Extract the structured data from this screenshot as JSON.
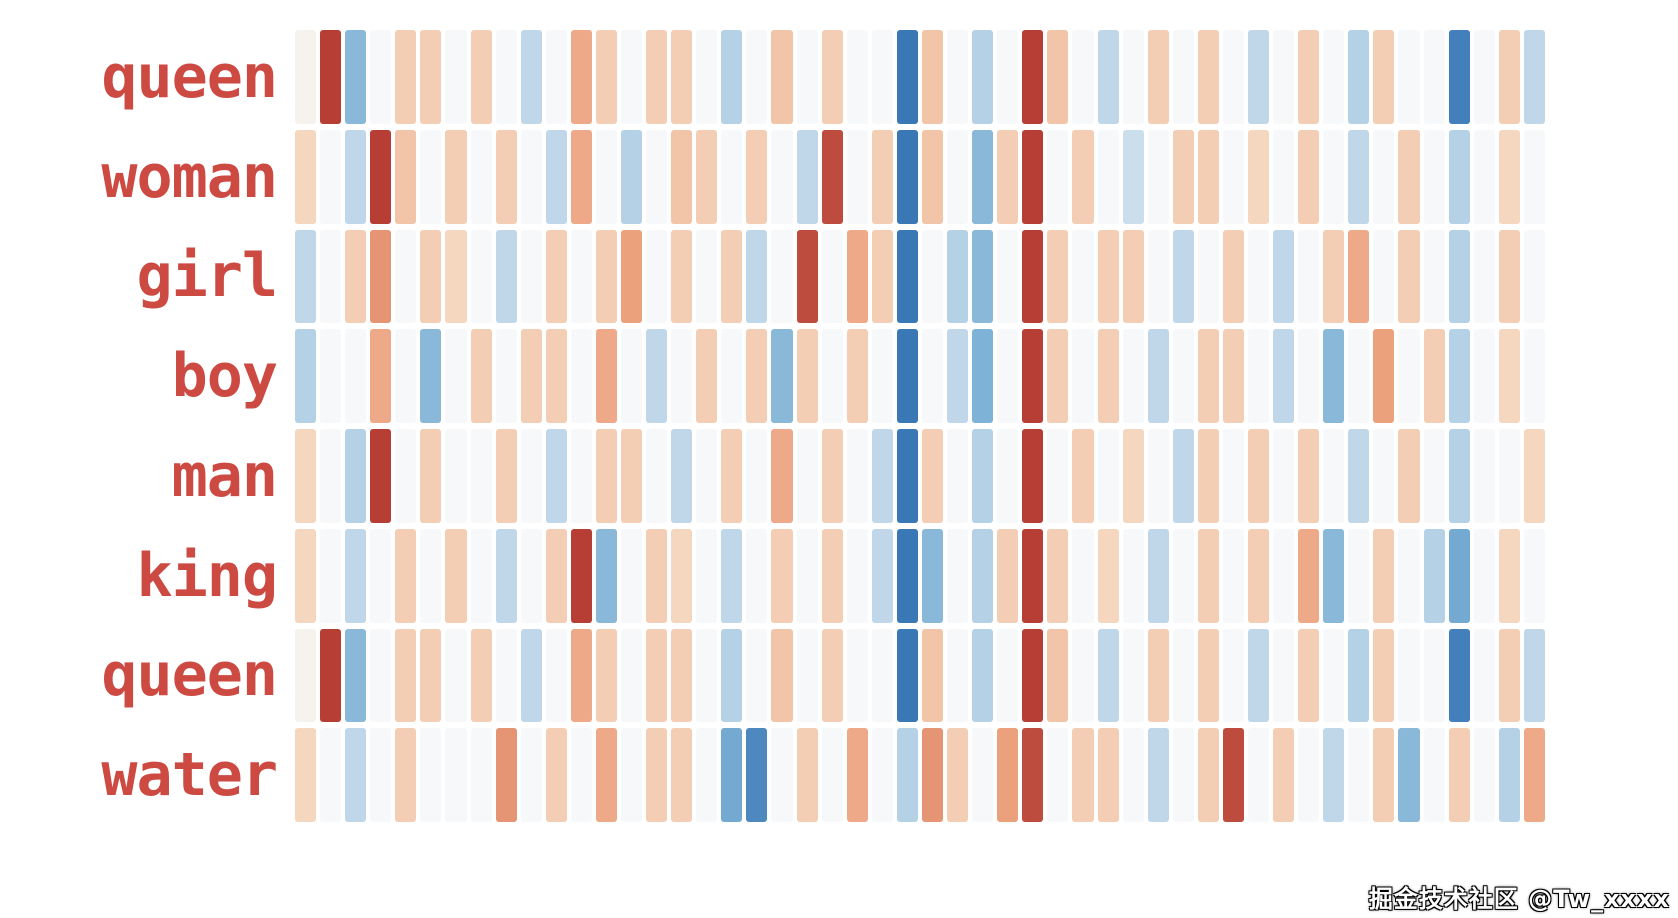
{
  "figure": {
    "description": "Word embedding heatmap: each row is a word, each colored strip is one embedding dimension on a blue-white-red diverging scale"
  },
  "watermark": {
    "text": "掘金技术社区 @Tw_xxxx"
  },
  "colors": {
    "label": "#cd4a43",
    "background": "#ffffff",
    "negative_max": "#2666ac",
    "negative_mid": "#7eb2d6",
    "negative_low": "#c7dbeb",
    "zero": "#f6f8f9",
    "positive_low": "#f6dcc6",
    "positive_mid": "#eca17d",
    "positive_max": "#b0322c"
  },
  "chart_data": {
    "type": "heatmap",
    "title": "",
    "xlabel": "",
    "ylabel": "",
    "legend": "none",
    "grid": false,
    "rows": [
      "queen",
      "woman",
      "girl",
      "boy",
      "man",
      "king",
      "queen",
      "water"
    ],
    "columns": 50,
    "value_range": [
      -1,
      1
    ],
    "colormap": "diverging RdBu reversed (dark blue = -1, white = 0, dark red = +1)",
    "values": [
      [
        0.05,
        0.95,
        -0.5,
        0,
        0.3,
        0.3,
        0,
        0.3,
        0,
        -0.25,
        0,
        0.5,
        0.3,
        0,
        0.3,
        0.3,
        0,
        -0.3,
        0,
        0.35,
        0,
        0.3,
        0,
        0,
        -0.9,
        0.35,
        0,
        -0.3,
        0,
        0.95,
        0.35,
        0,
        -0.25,
        0,
        0.3,
        0,
        0.3,
        0,
        -0.25,
        0,
        0.3,
        0,
        -0.3,
        0.3,
        0,
        0,
        -0.85,
        0,
        0.3,
        -0.25
      ],
      [
        0.25,
        0,
        -0.25,
        0.95,
        0.35,
        0,
        0.3,
        0,
        0.3,
        0,
        -0.25,
        0.5,
        0,
        -0.3,
        0,
        0.35,
        0.3,
        0,
        0.3,
        0,
        -0.25,
        0.9,
        0,
        0.3,
        -0.9,
        0.35,
        0,
        -0.5,
        0.3,
        0.95,
        0,
        0.3,
        0,
        -0.2,
        0,
        0.3,
        0.3,
        0,
        0.25,
        0,
        0.3,
        0,
        -0.25,
        0,
        0.3,
        0,
        -0.3,
        0,
        0.25,
        0
      ],
      [
        -0.25,
        0,
        0.3,
        0.6,
        0,
        0.3,
        0.25,
        0,
        -0.25,
        0,
        0.3,
        0,
        0.3,
        0.55,
        0,
        0.3,
        0,
        0.3,
        -0.25,
        0,
        0.9,
        0,
        0.5,
        0.3,
        -0.9,
        0,
        -0.3,
        -0.5,
        0,
        0.95,
        0.3,
        0,
        0.3,
        0.3,
        0,
        -0.25,
        0,
        0.3,
        0,
        -0.25,
        0,
        0.3,
        0.5,
        0,
        0.3,
        0,
        -0.3,
        0,
        0.3,
        0
      ],
      [
        -0.3,
        0,
        0,
        0.5,
        0,
        -0.5,
        0,
        0.3,
        0,
        0.3,
        0.3,
        0,
        0.5,
        0,
        -0.25,
        0,
        0.3,
        0,
        0.3,
        -0.5,
        0.3,
        0,
        0.3,
        0,
        -0.9,
        0,
        -0.25,
        -0.55,
        0,
        0.95,
        0.3,
        0,
        0.3,
        0,
        -0.25,
        0,
        0.3,
        0.3,
        0,
        -0.25,
        0,
        -0.5,
        0,
        0.55,
        0,
        0.3,
        -0.3,
        0,
        0.25,
        0
      ],
      [
        0.25,
        0,
        -0.3,
        0.95,
        0,
        0.3,
        0,
        0,
        0.3,
        0,
        -0.25,
        0,
        0.3,
        0.3,
        0,
        -0.25,
        0,
        0.3,
        0,
        0.5,
        0,
        0.3,
        0,
        -0.25,
        -0.9,
        0.3,
        0,
        -0.3,
        0,
        0.95,
        0,
        0.3,
        0,
        0.25,
        0,
        -0.25,
        0.3,
        0,
        0.3,
        0,
        0.3,
        0,
        -0.25,
        0,
        0.3,
        0,
        -0.3,
        0,
        0,
        0.25
      ],
      [
        0.25,
        0,
        -0.25,
        0,
        0.3,
        0,
        0.3,
        0,
        -0.25,
        0,
        0.3,
        0.95,
        -0.5,
        0,
        0.3,
        0.25,
        0,
        -0.25,
        0,
        0.3,
        0,
        0.3,
        0,
        -0.25,
        -0.9,
        -0.5,
        0,
        -0.3,
        0.3,
        0.95,
        0.3,
        0,
        0.25,
        0,
        -0.25,
        0,
        0.3,
        0,
        0.3,
        0,
        0.5,
        -0.5,
        0,
        0.3,
        0,
        -0.3,
        -0.6,
        0,
        0.25,
        0
      ],
      [
        0.05,
        0.95,
        -0.5,
        0,
        0.3,
        0.3,
        0,
        0.3,
        0,
        -0.25,
        0,
        0.5,
        0.3,
        0,
        0.3,
        0.3,
        0,
        -0.3,
        0,
        0.35,
        0,
        0.3,
        0,
        0,
        -0.9,
        0.35,
        0,
        -0.3,
        0,
        0.95,
        0.35,
        0,
        -0.25,
        0,
        0.3,
        0,
        0.3,
        0,
        -0.25,
        0,
        0.3,
        0,
        -0.3,
        0.3,
        0,
        0,
        -0.85,
        0,
        0.3,
        -0.25
      ],
      [
        0.25,
        0,
        -0.25,
        0,
        0.3,
        0,
        0,
        0,
        0.6,
        0,
        0.3,
        0,
        0.5,
        0,
        0.3,
        0.3,
        0,
        -0.6,
        -0.8,
        0,
        0.3,
        0,
        0.5,
        0,
        -0.3,
        0.6,
        0.3,
        0,
        0.55,
        0.9,
        0,
        0.3,
        0.3,
        0,
        -0.25,
        0,
        0.3,
        0.9,
        0,
        0.3,
        0,
        -0.25,
        0,
        0.3,
        -0.5,
        0,
        0.3,
        0,
        -0.3,
        0.5
      ]
    ]
  }
}
